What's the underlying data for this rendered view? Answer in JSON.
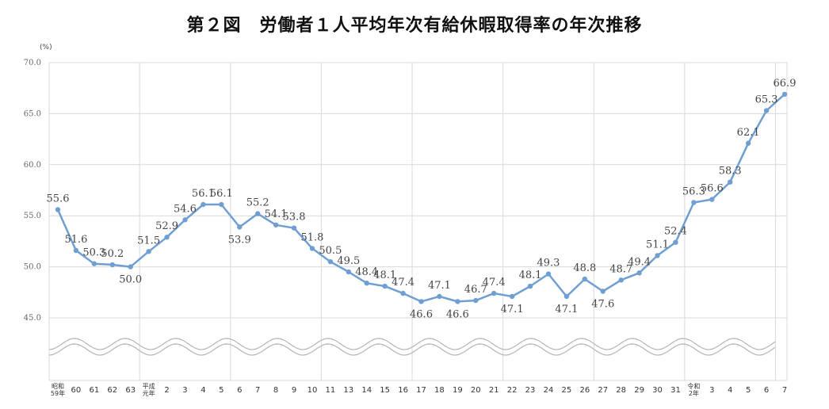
{
  "chart_data": {
    "type": "line",
    "title": "第２図　労働者１人平均年次有給休暇取得率の年次推移",
    "yunit": "(%)",
    "ylim": [
      45,
      70
    ],
    "yticks": [
      "45.0",
      "50.0",
      "55.0",
      "60.0",
      "65.0",
      "70.0"
    ],
    "axis_break": true,
    "grid": true,
    "categories": [
      {
        "label": "昭和59年",
        "era": "昭和",
        "sub": "59年"
      },
      {
        "label": "60"
      },
      {
        "label": "61"
      },
      {
        "label": "62"
      },
      {
        "label": "63"
      },
      {
        "label": "平成元年",
        "era": "平成",
        "sub": "元年"
      },
      {
        "label": "2"
      },
      {
        "label": "3"
      },
      {
        "label": "4"
      },
      {
        "label": "5"
      },
      {
        "label": "6"
      },
      {
        "label": "7"
      },
      {
        "label": "8"
      },
      {
        "label": "9"
      },
      {
        "label": "10"
      },
      {
        "label": "11"
      },
      {
        "label": "13"
      },
      {
        "label": "14"
      },
      {
        "label": "15"
      },
      {
        "label": "16"
      },
      {
        "label": "17"
      },
      {
        "label": "18"
      },
      {
        "label": "19"
      },
      {
        "label": "20"
      },
      {
        "label": "21"
      },
      {
        "label": "22"
      },
      {
        "label": "23"
      },
      {
        "label": "24"
      },
      {
        "label": "25"
      },
      {
        "label": "26"
      },
      {
        "label": "27"
      },
      {
        "label": "28"
      },
      {
        "label": "29"
      },
      {
        "label": "30"
      },
      {
        "label": "31"
      },
      {
        "label": "令和2年",
        "era": "令和",
        "sub": "2年"
      },
      {
        "label": "3"
      },
      {
        "label": "4"
      },
      {
        "label": "5"
      },
      {
        "label": "6"
      },
      {
        "label": "7"
      }
    ],
    "series": [
      {
        "color": "#6f9fd2",
        "values": [
          55.6,
          51.6,
          50.3,
          50.2,
          50.0,
          51.5,
          52.9,
          54.6,
          56.1,
          56.1,
          53.9,
          55.2,
          54.1,
          53.8,
          51.8,
          50.5,
          49.5,
          48.4,
          48.1,
          47.4,
          46.6,
          47.1,
          46.6,
          46.7,
          47.4,
          47.1,
          48.1,
          49.3,
          47.1,
          48.8,
          47.6,
          48.7,
          49.4,
          51.1,
          52.4,
          56.3,
          56.6,
          58.3,
          62.1,
          65.3,
          66.9
        ],
        "data_labels": [
          "55.6",
          "51.6",
          "50.3",
          "50.2",
          "50.0",
          "51.5",
          "52.9",
          "54.6",
          "56.1",
          "56.1",
          "53.9",
          "55.2",
          "54.1",
          "53.8",
          "51.8",
          "50.5",
          "49.5",
          "48.4",
          "48.1",
          "47.4",
          "46.6",
          "47.1",
          "46.6",
          "46.7",
          "47.4",
          "47.1",
          "48.1",
          "49.3",
          "47.1",
          "48.8",
          "47.6",
          "48.7",
          "49.4",
          "51.1",
          "52.4",
          "56.3",
          "56.6",
          "58.3",
          "62.1",
          "65.3",
          "66.9"
        ]
      }
    ]
  }
}
